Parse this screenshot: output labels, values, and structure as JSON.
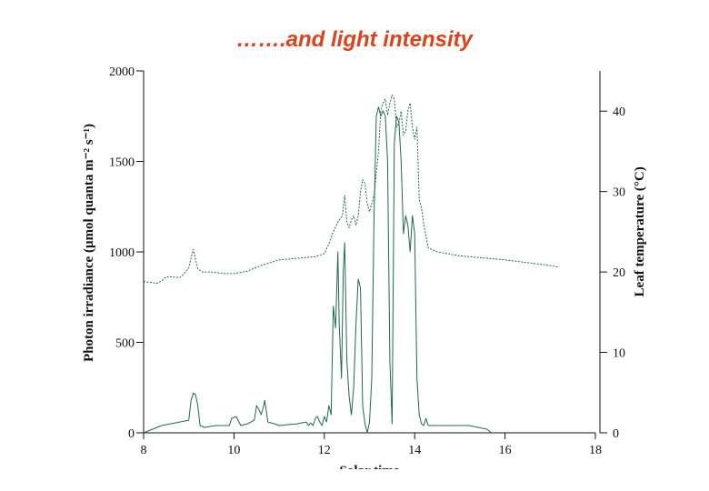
{
  "slide": {
    "title": "…….and light intensity"
  },
  "colors": {
    "title": "#e0401a",
    "series": "#1f6b4a",
    "axis": "#111111"
  },
  "chart_data": {
    "type": "line",
    "xlabel": "Solar time",
    "ylabel_left": "Photon irradiance (μmol quanta m⁻² s⁻¹)",
    "ylabel_right": "Leaf temperature (°C)",
    "xlim": [
      8,
      18
    ],
    "ylim_left": [
      0,
      2000
    ],
    "ylim_right": [
      0,
      45
    ],
    "x_ticks": [
      "8",
      "10",
      "12",
      "14",
      "16",
      "18"
    ],
    "y_ticks_left": [
      "0",
      "500",
      "1000",
      "1500",
      "2000"
    ],
    "y_ticks_right": [
      "0",
      "10",
      "20",
      "30",
      "40"
    ],
    "grid": false,
    "series": [
      {
        "style": "solid",
        "axis": "left",
        "x": [
          8.0,
          8.4,
          8.8,
          9.0,
          9.05,
          9.1,
          9.15,
          9.2,
          9.25,
          9.35,
          9.6,
          9.9,
          9.95,
          10.05,
          10.15,
          10.3,
          10.45,
          10.5,
          10.55,
          10.6,
          10.65,
          10.68,
          10.75,
          10.9,
          11.0,
          11.2,
          11.4,
          11.6,
          11.65,
          11.7,
          11.75,
          11.8,
          11.85,
          11.9,
          11.95,
          12.0,
          12.05,
          12.1,
          12.15,
          12.2,
          12.25,
          12.3,
          12.33,
          12.38,
          12.42,
          12.45,
          12.5,
          12.55,
          12.6,
          12.65,
          12.7,
          12.75,
          12.8,
          12.85,
          12.9,
          12.95,
          13.0,
          13.05,
          13.1,
          13.15,
          13.2,
          13.25,
          13.3,
          13.35,
          13.4,
          13.45,
          13.5,
          13.55,
          13.6,
          13.65,
          13.7,
          13.75,
          13.8,
          13.85,
          13.9,
          13.95,
          14.0,
          14.05,
          14.1,
          14.15,
          14.2,
          14.25,
          14.3,
          14.5,
          15.2,
          15.6,
          15.7
        ],
        "y": [
          0,
          40,
          60,
          70,
          180,
          220,
          210,
          150,
          40,
          30,
          40,
          40,
          80,
          90,
          40,
          50,
          70,
          150,
          130,
          100,
          140,
          180,
          60,
          50,
          40,
          45,
          50,
          60,
          40,
          55,
          40,
          80,
          90,
          60,
          40,
          90,
          60,
          150,
          100,
          700,
          580,
          1000,
          600,
          300,
          900,
          1050,
          400,
          200,
          100,
          250,
          600,
          850,
          800,
          150,
          50,
          0,
          60,
          300,
          1200,
          1750,
          1800,
          1750,
          1780,
          1750,
          1500,
          400,
          50,
          1600,
          1750,
          1720,
          1500,
          1100,
          1200,
          1150,
          1000,
          1200,
          1100,
          300,
          100,
          50,
          40,
          80,
          40,
          40,
          40,
          20,
          0
        ]
      },
      {
        "style": "dashed",
        "axis": "right",
        "x": [
          8.0,
          8.3,
          8.4,
          8.5,
          8.6,
          8.8,
          8.9,
          9.0,
          9.05,
          9.1,
          9.15,
          9.2,
          9.3,
          9.5,
          9.8,
          10.0,
          10.3,
          10.6,
          11.0,
          11.4,
          11.8,
          12.0,
          12.1,
          12.2,
          12.3,
          12.4,
          12.45,
          12.5,
          12.55,
          12.6,
          12.65,
          12.7,
          12.75,
          12.8,
          12.85,
          12.9,
          12.95,
          13.0,
          13.1,
          13.2,
          13.25,
          13.3,
          13.35,
          13.4,
          13.45,
          13.5,
          13.55,
          13.6,
          13.65,
          13.7,
          13.75,
          13.8,
          13.85,
          13.9,
          13.95,
          14.0,
          14.05,
          14.1,
          14.15,
          14.2,
          14.3,
          14.5,
          15.0,
          16.0,
          17.0,
          17.2
        ],
        "y": [
          18.8,
          18.6,
          18.9,
          19.4,
          19.4,
          19.3,
          19.8,
          20.5,
          21.8,
          22.8,
          21.5,
          20.4,
          20.0,
          20.0,
          19.8,
          19.8,
          20.1,
          20.8,
          21.5,
          21.7,
          21.9,
          22.3,
          23.5,
          25.0,
          26.2,
          27.0,
          29.5,
          26.2,
          25.5,
          26.5,
          27.0,
          25.8,
          27.0,
          30.0,
          31.5,
          31.0,
          28.5,
          27.5,
          29.5,
          35.0,
          40.0,
          41.0,
          41.5,
          39.5,
          41.0,
          42.0,
          41.5,
          38.0,
          38.5,
          40.0,
          37.0,
          37.5,
          40.0,
          41.0,
          38.0,
          36.5,
          38.0,
          29.0,
          28.0,
          26.0,
          23.0,
          22.5,
          22.0,
          21.5,
          20.8,
          20.6
        ]
      }
    ]
  }
}
